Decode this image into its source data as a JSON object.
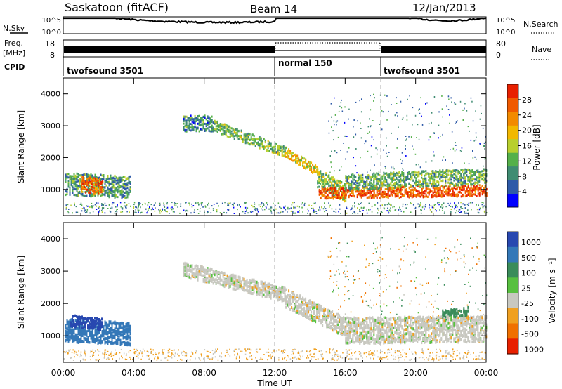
{
  "header": {
    "station": "Saskatoon (fitACF)",
    "beam": "Beam 14",
    "date": "12/Jan/2013"
  },
  "side_labels": {
    "nsky": "N.Sky",
    "nsearch": "N.Search",
    "freq": "Freq.",
    "freq_unit": "[MHz]",
    "nave": "Nave",
    "cpid": "CPID"
  },
  "noise_panel": {
    "left_ticks": [
      "10^5",
      "10^0"
    ],
    "right_ticks": [
      "10^5",
      "10^0"
    ]
  },
  "freq_panel": {
    "left_ticks": [
      "18",
      "8"
    ],
    "right_ticks": [
      "80",
      "0"
    ]
  },
  "cpid_panel": {
    "segments": [
      {
        "label": "twofsound 3501",
        "start_hr": 0,
        "end_hr": 12
      },
      {
        "label": "normal 150",
        "start_hr": 12,
        "end_hr": 18
      },
      {
        "label": "twofsound 3501",
        "start_hr": 18,
        "end_hr": 24
      }
    ]
  },
  "power_colorbar": {
    "label": "Power [dB]",
    "ticks": [
      "4",
      "8",
      "12",
      "16",
      "20",
      "24",
      "28"
    ],
    "colors": [
      "#0000ff",
      "#2e5aa8",
      "#3f8c72",
      "#55b04a",
      "#b8cf2e",
      "#f2b800",
      "#f28a00",
      "#f05a00",
      "#e82000"
    ]
  },
  "velocity_colorbar": {
    "label": "Velocity [m s⁻¹]",
    "ticks": [
      "1000",
      "500",
      "100",
      "25",
      "-25",
      "-100",
      "-500",
      "-1000"
    ],
    "colors": [
      "#2848b0",
      "#3478b8",
      "#3a8c5a",
      "#58c040",
      "#c8c8c0",
      "#f0a020",
      "#f07000",
      "#e82000"
    ]
  },
  "chart_data": [
    {
      "type": "heatmap",
      "panel": "power",
      "xlabel": "",
      "ylabel": "Slant Range [km]",
      "xlim": [
        0,
        24
      ],
      "ylim": [
        180,
        4500
      ],
      "y_ticks": [
        1000,
        2000,
        3000,
        4000
      ],
      "bands": [
        {
          "x": [
            0.1,
            3.8
          ],
          "y_center": [
            1200,
            1100
          ],
          "width": 700,
          "level": 10
        },
        {
          "x": [
            1.0,
            2.2
          ],
          "y_center": [
            1200,
            1100
          ],
          "width": 500,
          "level": 26
        },
        {
          "x": [
            6.8,
            8.4
          ],
          "y_center": [
            3100,
            3100
          ],
          "width": 500,
          "level": 9
        },
        {
          "x": [
            8.4,
            12.6
          ],
          "y_center": [
            3050,
            2200
          ],
          "width": 350,
          "level": 13
        },
        {
          "x": [
            12.6,
            14.4
          ],
          "y_center": [
            2200,
            1600
          ],
          "width": 300,
          "level": 18
        },
        {
          "x": [
            14.4,
            16.0
          ],
          "y_center": [
            1400,
            900
          ],
          "width": 600,
          "level": 14
        },
        {
          "x": [
            14.5,
            24.0
          ],
          "y_center": [
            900,
            1000
          ],
          "width": 350,
          "level": 27
        },
        {
          "x": [
            16.0,
            24.0
          ],
          "y_center": [
            1250,
            1450
          ],
          "width": 500,
          "level": 12
        }
      ]
    },
    {
      "type": "heatmap",
      "panel": "velocity",
      "xlabel": "Time UT",
      "ylabel": "Slant Range [km]",
      "xlim": [
        0,
        24
      ],
      "ylim": [
        180,
        4500
      ],
      "x_ticks": [
        "00:00",
        "04:00",
        "08:00",
        "12:00",
        "16:00",
        "20:00",
        "00:00"
      ],
      "y_ticks": [
        1000,
        2000,
        3000,
        4000
      ],
      "bands": [
        {
          "x": [
            0.1,
            3.8
          ],
          "y_center": [
            1200,
            1100
          ],
          "width": 700,
          "level": 500
        },
        {
          "x": [
            0.4,
            2.2
          ],
          "y_center": [
            1500,
            1400
          ],
          "width": 350,
          "level": 1000
        },
        {
          "x": [
            6.8,
            12.6
          ],
          "y_center": [
            3100,
            2300
          ],
          "width": 450,
          "level": 0
        },
        {
          "x": [
            12.6,
            16.0
          ],
          "y_center": [
            2200,
            1300
          ],
          "width": 600,
          "level": 0
        },
        {
          "x": [
            16.0,
            24.0
          ],
          "y_center": [
            1200,
            1250
          ],
          "width": 800,
          "level": 0
        },
        {
          "x": [
            21.5,
            23.0
          ],
          "y_center": [
            1700,
            1800
          ],
          "width": 250,
          "level": 100
        }
      ]
    }
  ]
}
